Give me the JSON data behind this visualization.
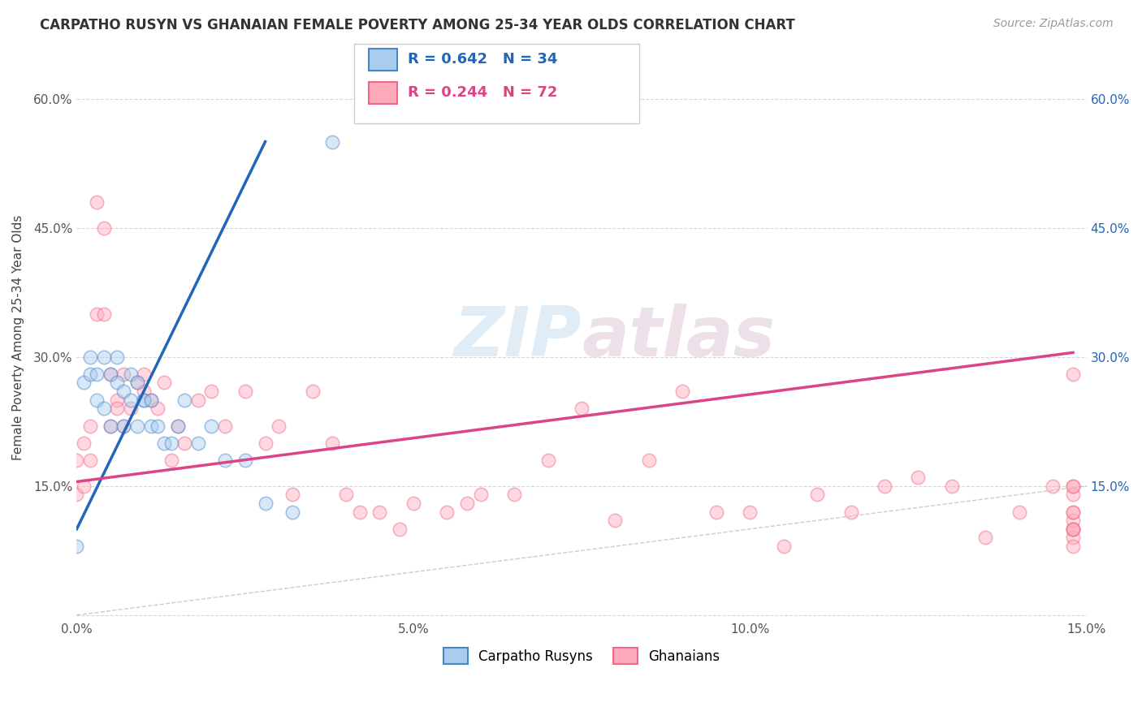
{
  "title": "CARPATHO RUSYN VS GHANAIAN FEMALE POVERTY AMONG 25-34 YEAR OLDS CORRELATION CHART",
  "source": "Source: ZipAtlas.com",
  "ylabel": "Female Poverty Among 25-34 Year Olds",
  "xlim": [
    0.0,
    0.15
  ],
  "ylim": [
    -0.005,
    0.65
  ],
  "xticks": [
    0.0,
    0.05,
    0.1,
    0.15
  ],
  "xtick_labels": [
    "0.0%",
    "5.0%",
    "10.0%",
    "15.0%"
  ],
  "yticks": [
    0.0,
    0.15,
    0.3,
    0.45,
    0.6
  ],
  "ytick_labels": [
    "",
    "15.0%",
    "30.0%",
    "45.0%",
    "60.0%"
  ],
  "ytick_labels_right": [
    "",
    "15.0%",
    "30.0%",
    "45.0%",
    "60.0%"
  ],
  "legend_line1": "R = 0.642   N = 34",
  "legend_line2": "R = 0.244   N = 72",
  "legend_label_blue": "Carpatho Rusyns",
  "legend_label_pink": "Ghanaians",
  "blue_fill": "#aaccee",
  "blue_edge": "#4488cc",
  "pink_fill": "#ffaabb",
  "pink_edge": "#ee6688",
  "blue_line_color": "#2266bb",
  "pink_line_color": "#dd4488",
  "text_blue": "#2266bb",
  "text_pink": "#dd4488",
  "background_color": "#ffffff",
  "grid_color": "#cccccc",
  "watermark_zip": "ZIP",
  "watermark_atlas": "atlas",
  "blue_scatter_x": [
    0.0,
    0.001,
    0.002,
    0.002,
    0.003,
    0.003,
    0.004,
    0.004,
    0.005,
    0.005,
    0.006,
    0.006,
    0.007,
    0.007,
    0.008,
    0.008,
    0.009,
    0.009,
    0.01,
    0.01,
    0.011,
    0.011,
    0.012,
    0.013,
    0.014,
    0.015,
    0.016,
    0.018,
    0.02,
    0.022,
    0.025,
    0.028,
    0.032,
    0.038
  ],
  "blue_scatter_y": [
    0.08,
    0.27,
    0.28,
    0.3,
    0.28,
    0.25,
    0.24,
    0.3,
    0.22,
    0.28,
    0.27,
    0.3,
    0.22,
    0.26,
    0.25,
    0.28,
    0.22,
    0.27,
    0.25,
    0.25,
    0.22,
    0.25,
    0.22,
    0.2,
    0.2,
    0.22,
    0.25,
    0.2,
    0.22,
    0.18,
    0.18,
    0.13,
    0.12,
    0.55
  ],
  "pink_scatter_x": [
    0.0,
    0.0,
    0.001,
    0.001,
    0.002,
    0.002,
    0.003,
    0.003,
    0.004,
    0.004,
    0.005,
    0.005,
    0.006,
    0.006,
    0.007,
    0.007,
    0.008,
    0.009,
    0.01,
    0.01,
    0.011,
    0.012,
    0.013,
    0.014,
    0.015,
    0.016,
    0.018,
    0.02,
    0.022,
    0.025,
    0.028,
    0.03,
    0.032,
    0.035,
    0.038,
    0.04,
    0.042,
    0.045,
    0.048,
    0.05,
    0.055,
    0.058,
    0.06,
    0.065,
    0.07,
    0.075,
    0.08,
    0.085,
    0.09,
    0.095,
    0.1,
    0.105,
    0.11,
    0.115,
    0.12,
    0.125,
    0.13,
    0.135,
    0.14,
    0.145,
    0.148,
    0.148,
    0.148,
    0.148,
    0.148,
    0.148,
    0.148,
    0.148,
    0.148,
    0.148,
    0.148,
    0.148
  ],
  "pink_scatter_y": [
    0.18,
    0.14,
    0.2,
    0.15,
    0.18,
    0.22,
    0.35,
    0.48,
    0.45,
    0.35,
    0.28,
    0.22,
    0.25,
    0.24,
    0.22,
    0.28,
    0.24,
    0.27,
    0.26,
    0.28,
    0.25,
    0.24,
    0.27,
    0.18,
    0.22,
    0.2,
    0.25,
    0.26,
    0.22,
    0.26,
    0.2,
    0.22,
    0.14,
    0.26,
    0.2,
    0.14,
    0.12,
    0.12,
    0.1,
    0.13,
    0.12,
    0.13,
    0.14,
    0.14,
    0.18,
    0.24,
    0.11,
    0.18,
    0.26,
    0.12,
    0.12,
    0.08,
    0.14,
    0.12,
    0.15,
    0.16,
    0.15,
    0.09,
    0.12,
    0.15,
    0.1,
    0.11,
    0.14,
    0.09,
    0.12,
    0.15,
    0.1,
    0.12,
    0.1,
    0.08,
    0.15,
    0.28
  ],
  "blue_line_x0": 0.0,
  "blue_line_y0": 0.1,
  "blue_line_x1": 0.028,
  "blue_line_y1": 0.55,
  "pink_line_x0": 0.0,
  "pink_line_y0": 0.155,
  "pink_line_x1": 0.148,
  "pink_line_y1": 0.305,
  "marker_size": 140,
  "marker_alpha": 0.45,
  "marker_lw": 1.2
}
